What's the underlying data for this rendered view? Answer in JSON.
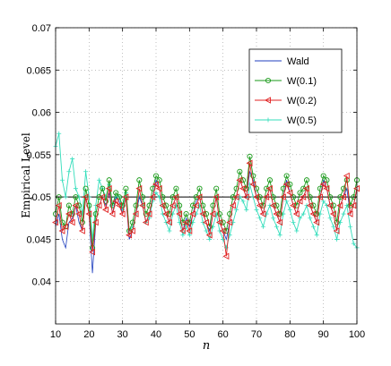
{
  "chart_data": {
    "type": "line",
    "title": "",
    "xlabel": "n",
    "ylabel": "Empirical Level",
    "xlim": [
      10,
      100
    ],
    "ylim": [
      0.035,
      0.07
    ],
    "xticks": [
      10,
      20,
      30,
      40,
      50,
      60,
      70,
      80,
      90,
      100
    ],
    "yticks": [
      0.04,
      0.045,
      0.05,
      0.055,
      0.06,
      0.065,
      0.07
    ],
    "ytick_labels": [
      "0.04",
      "0.045",
      "0.05",
      "0.055",
      "0.06",
      "0.065",
      "0.07"
    ],
    "grid": true,
    "legend_position": "top-right",
    "reference_line": 0.05,
    "x_start": 10,
    "series": [
      {
        "name": "Wald",
        "color": "#1f3fbf",
        "marker": "none",
        "values": [
          0.0465,
          0.048,
          0.045,
          0.044,
          0.047,
          0.0475,
          0.049,
          0.047,
          0.046,
          0.05,
          0.048,
          0.041,
          0.047,
          0.049,
          0.05,
          0.049,
          0.0505,
          0.048,
          0.05,
          0.0495,
          0.048,
          0.05,
          0.045,
          0.046,
          0.048,
          0.05,
          0.049,
          0.047,
          0.048,
          0.05,
          0.052,
          0.051,
          0.049,
          0.048,
          0.047,
          0.049,
          0.05,
          0.048,
          0.046,
          0.0475,
          0.0465,
          0.048,
          0.0495,
          0.05,
          0.048,
          0.047,
          0.046,
          0.048,
          0.05,
          0.047,
          0.046,
          0.045,
          0.047,
          0.049,
          0.05,
          0.052,
          0.051,
          0.05,
          0.053,
          0.052,
          0.05,
          0.049,
          0.048,
          0.05,
          0.051,
          0.049,
          0.048,
          0.047,
          0.05,
          0.052,
          0.0505,
          0.049,
          0.048,
          0.0495,
          0.05,
          0.051,
          0.049,
          0.048,
          0.047,
          0.05,
          0.052,
          0.051,
          0.049,
          0.048,
          0.046,
          0.049,
          0.05,
          0.051,
          0.048,
          0.049,
          0.051
        ]
      },
      {
        "name": "W(0.1)",
        "color": "#1a9a1a",
        "marker": "circle",
        "values": [
          0.048,
          0.05,
          0.047,
          0.0465,
          0.049,
          0.048,
          0.05,
          0.049,
          0.047,
          0.051,
          0.049,
          0.044,
          0.048,
          0.05,
          0.051,
          0.0495,
          0.052,
          0.049,
          0.0505,
          0.05,
          0.049,
          0.051,
          0.046,
          0.047,
          0.049,
          0.052,
          0.05,
          0.048,
          0.049,
          0.051,
          0.0525,
          0.052,
          0.05,
          0.049,
          0.048,
          0.05,
          0.051,
          0.049,
          0.047,
          0.048,
          0.047,
          0.049,
          0.05,
          0.051,
          0.049,
          0.048,
          0.0465,
          0.049,
          0.051,
          0.048,
          0.047,
          0.046,
          0.048,
          0.05,
          0.051,
          0.053,
          0.052,
          0.051,
          0.0548,
          0.0525,
          0.051,
          0.05,
          0.049,
          0.051,
          0.052,
          0.05,
          0.049,
          0.048,
          0.051,
          0.0525,
          0.0515,
          0.05,
          0.049,
          0.0505,
          0.051,
          0.052,
          0.05,
          0.049,
          0.048,
          0.051,
          0.0525,
          0.052,
          0.05,
          0.049,
          0.047,
          0.05,
          0.051,
          0.052,
          0.049,
          0.05,
          0.052
        ]
      },
      {
        "name": "W(0.2)",
        "color": "#e02020",
        "marker": "triangle-left",
        "values": [
          0.047,
          0.049,
          0.046,
          0.0465,
          0.048,
          0.047,
          0.049,
          0.048,
          0.046,
          0.05,
          0.048,
          0.0435,
          0.047,
          0.049,
          0.05,
          0.0485,
          0.051,
          0.048,
          0.0495,
          0.049,
          0.048,
          0.05,
          0.0455,
          0.046,
          0.048,
          0.051,
          0.049,
          0.047,
          0.048,
          0.05,
          0.0515,
          0.051,
          0.049,
          0.048,
          0.047,
          0.049,
          0.05,
          0.048,
          0.046,
          0.047,
          0.046,
          0.048,
          0.049,
          0.05,
          0.048,
          0.047,
          0.0455,
          0.048,
          0.05,
          0.047,
          0.046,
          0.043,
          0.047,
          0.049,
          0.05,
          0.052,
          0.051,
          0.05,
          0.054,
          0.0515,
          0.05,
          0.049,
          0.048,
          0.05,
          0.051,
          0.049,
          0.048,
          0.047,
          0.05,
          0.0515,
          0.0505,
          0.049,
          0.048,
          0.0495,
          0.05,
          0.051,
          0.049,
          0.048,
          0.047,
          0.05,
          0.0515,
          0.051,
          0.049,
          0.048,
          0.046,
          0.049,
          0.05,
          0.0525,
          0.048,
          0.049,
          0.051
        ]
      },
      {
        "name": "W(0.5)",
        "color": "#33ddbb",
        "marker": "plus",
        "values": [
          0.056,
          0.0575,
          0.052,
          0.05,
          0.053,
          0.0545,
          0.051,
          0.05,
          0.048,
          0.053,
          0.05,
          0.045,
          0.049,
          0.052,
          0.051,
          0.05,
          0.0515,
          0.049,
          0.05,
          0.05,
          0.0485,
          0.0505,
          0.046,
          0.0465,
          0.048,
          0.05,
          0.049,
          0.047,
          0.0475,
          0.0495,
          0.0505,
          0.05,
          0.048,
          0.047,
          0.046,
          0.048,
          0.049,
          0.047,
          0.0455,
          0.0465,
          0.0455,
          0.047,
          0.048,
          0.049,
          0.047,
          0.046,
          0.045,
          0.0465,
          0.048,
          0.046,
          0.045,
          0.044,
          0.0455,
          0.047,
          0.0485,
          0.05,
          0.0495,
          0.0485,
          0.0515,
          0.05,
          0.0485,
          0.0475,
          0.0465,
          0.048,
          0.049,
          0.0475,
          0.0465,
          0.0455,
          0.048,
          0.0495,
          0.0485,
          0.047,
          0.046,
          0.0475,
          0.048,
          0.049,
          0.0475,
          0.0465,
          0.0455,
          0.048,
          0.0495,
          0.049,
          0.0475,
          0.0465,
          0.045,
          0.047,
          0.048,
          0.049,
          0.0465,
          0.0445,
          0.044
        ]
      }
    ]
  }
}
